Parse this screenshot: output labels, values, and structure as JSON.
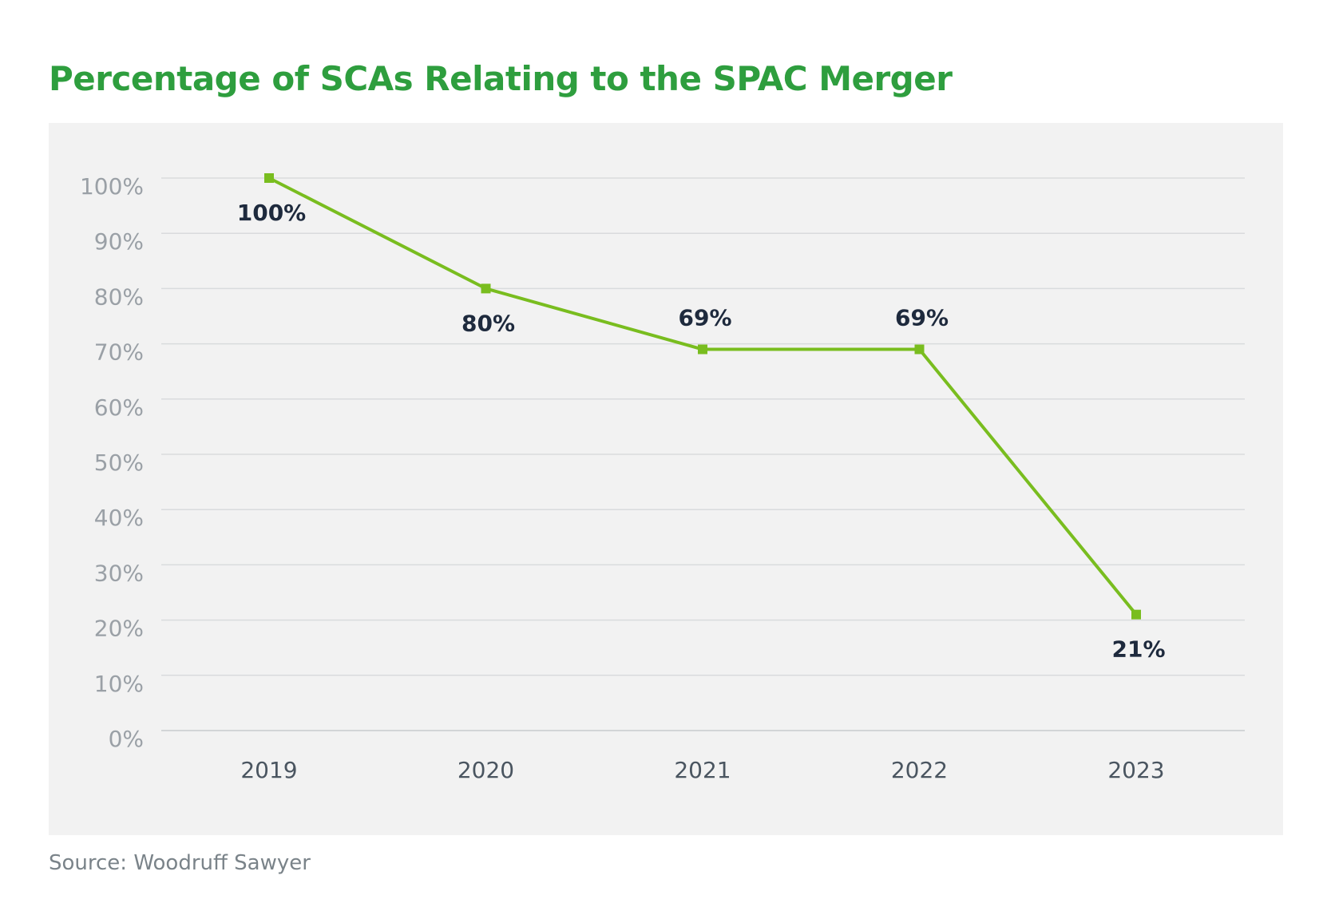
{
  "chart_data": {
    "type": "line",
    "title": "Percentage of SCAs Relating to the SPAC Merger",
    "categories": [
      "2019",
      "2020",
      "2021",
      "2022",
      "2023"
    ],
    "values": [
      100,
      80,
      69,
      69,
      21
    ],
    "data_labels": [
      "100%",
      "80%",
      "69%",
      "69%",
      "21%"
    ],
    "ylim": [
      0,
      100
    ],
    "yticks": [
      "0%",
      "10%",
      "20%",
      "30%",
      "40%",
      "50%",
      "60%",
      "70%",
      "80%",
      "90%",
      "100%"
    ],
    "grid": true,
    "marker": "square",
    "colors": {
      "line": "#79bd1f",
      "title": "#2e9e3e",
      "label": "#1e2a3d",
      "tick": "#9aa0a6",
      "background": "#f2f2f2"
    }
  },
  "source": "Source: Woodruff Sawyer"
}
